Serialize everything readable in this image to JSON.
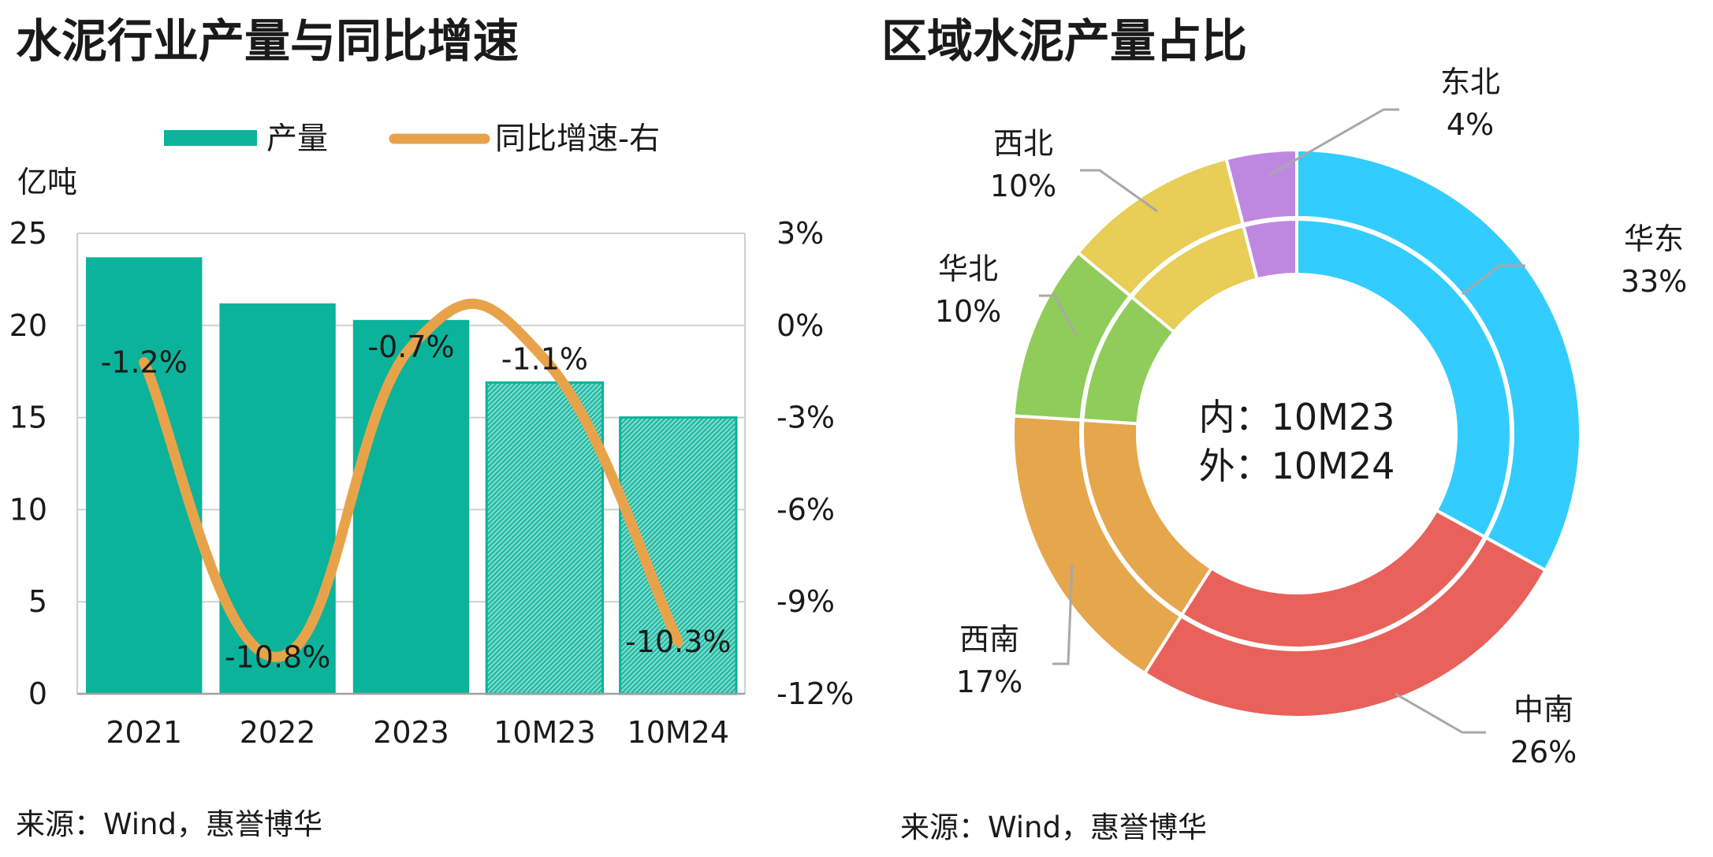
{
  "left_panel": {
    "title": "水泥行业产量与同比增速",
    "unit_label": "亿吨",
    "source": "来源：Wind，惠誉博华"
  },
  "right_panel": {
    "title": "区域水泥产量占比",
    "center_line1": "内：10M23",
    "center_line2": "外：10M24",
    "source": "来源：Wind，惠誉博华"
  },
  "chart_data": [
    {
      "type": "bar",
      "categories": [
        "2021",
        "2022",
        "2023",
        "10M23",
        "10M24"
      ],
      "series": [
        {
          "name": "产量",
          "axis": "left",
          "values": [
            23.7,
            21.2,
            20.3,
            16.9,
            15.0
          ],
          "hatched": [
            false,
            false,
            false,
            true,
            true
          ],
          "color": "#0bb39a"
        },
        {
          "name": "同比增速-右",
          "axis": "right",
          "type": "line",
          "smooth": true,
          "values": [
            -1.2,
            -10.8,
            -0.7,
            -1.1,
            -10.3
          ],
          "data_labels": [
            "-1.2%",
            "-10.8%",
            "-0.7%",
            "-1.1%",
            "-10.3%"
          ],
          "color": "#e8a34a"
        }
      ],
      "y_left": {
        "lim": [
          0,
          25
        ],
        "ticks": [
          0,
          5,
          10,
          15,
          20,
          25
        ],
        "tick_labels": [
          "0",
          "5",
          "10",
          "15",
          "20",
          "25"
        ]
      },
      "y_right": {
        "lim": [
          -12,
          3
        ],
        "ticks": [
          -12,
          -9,
          -6,
          -3,
          0,
          3
        ],
        "tick_labels": [
          "-12%",
          "-9%",
          "-6%",
          "-3%",
          "0%",
          "3%"
        ]
      },
      "grid": true,
      "legend": "top"
    },
    {
      "type": "pie",
      "variant": "double-donut",
      "regions": [
        "华东",
        "中南",
        "西南",
        "华北",
        "西北",
        "东北"
      ],
      "colors": [
        "#33ccff",
        "#e9615b",
        "#e5a64c",
        "#8fcc5a",
        "#e8cd56",
        "#bf88e0"
      ],
      "outer_10M24": [
        33,
        26,
        17,
        10,
        10,
        4
      ],
      "inner_10M23": [
        33,
        26,
        17,
        10,
        10,
        4
      ],
      "labels": [
        {
          "region": "华东",
          "pct": "33%"
        },
        {
          "region": "中南",
          "pct": "26%"
        },
        {
          "region": "西南",
          "pct": "17%"
        },
        {
          "region": "华北",
          "pct": "10%"
        },
        {
          "region": "西北",
          "pct": "10%"
        },
        {
          "region": "东北",
          "pct": "4%"
        }
      ]
    }
  ]
}
